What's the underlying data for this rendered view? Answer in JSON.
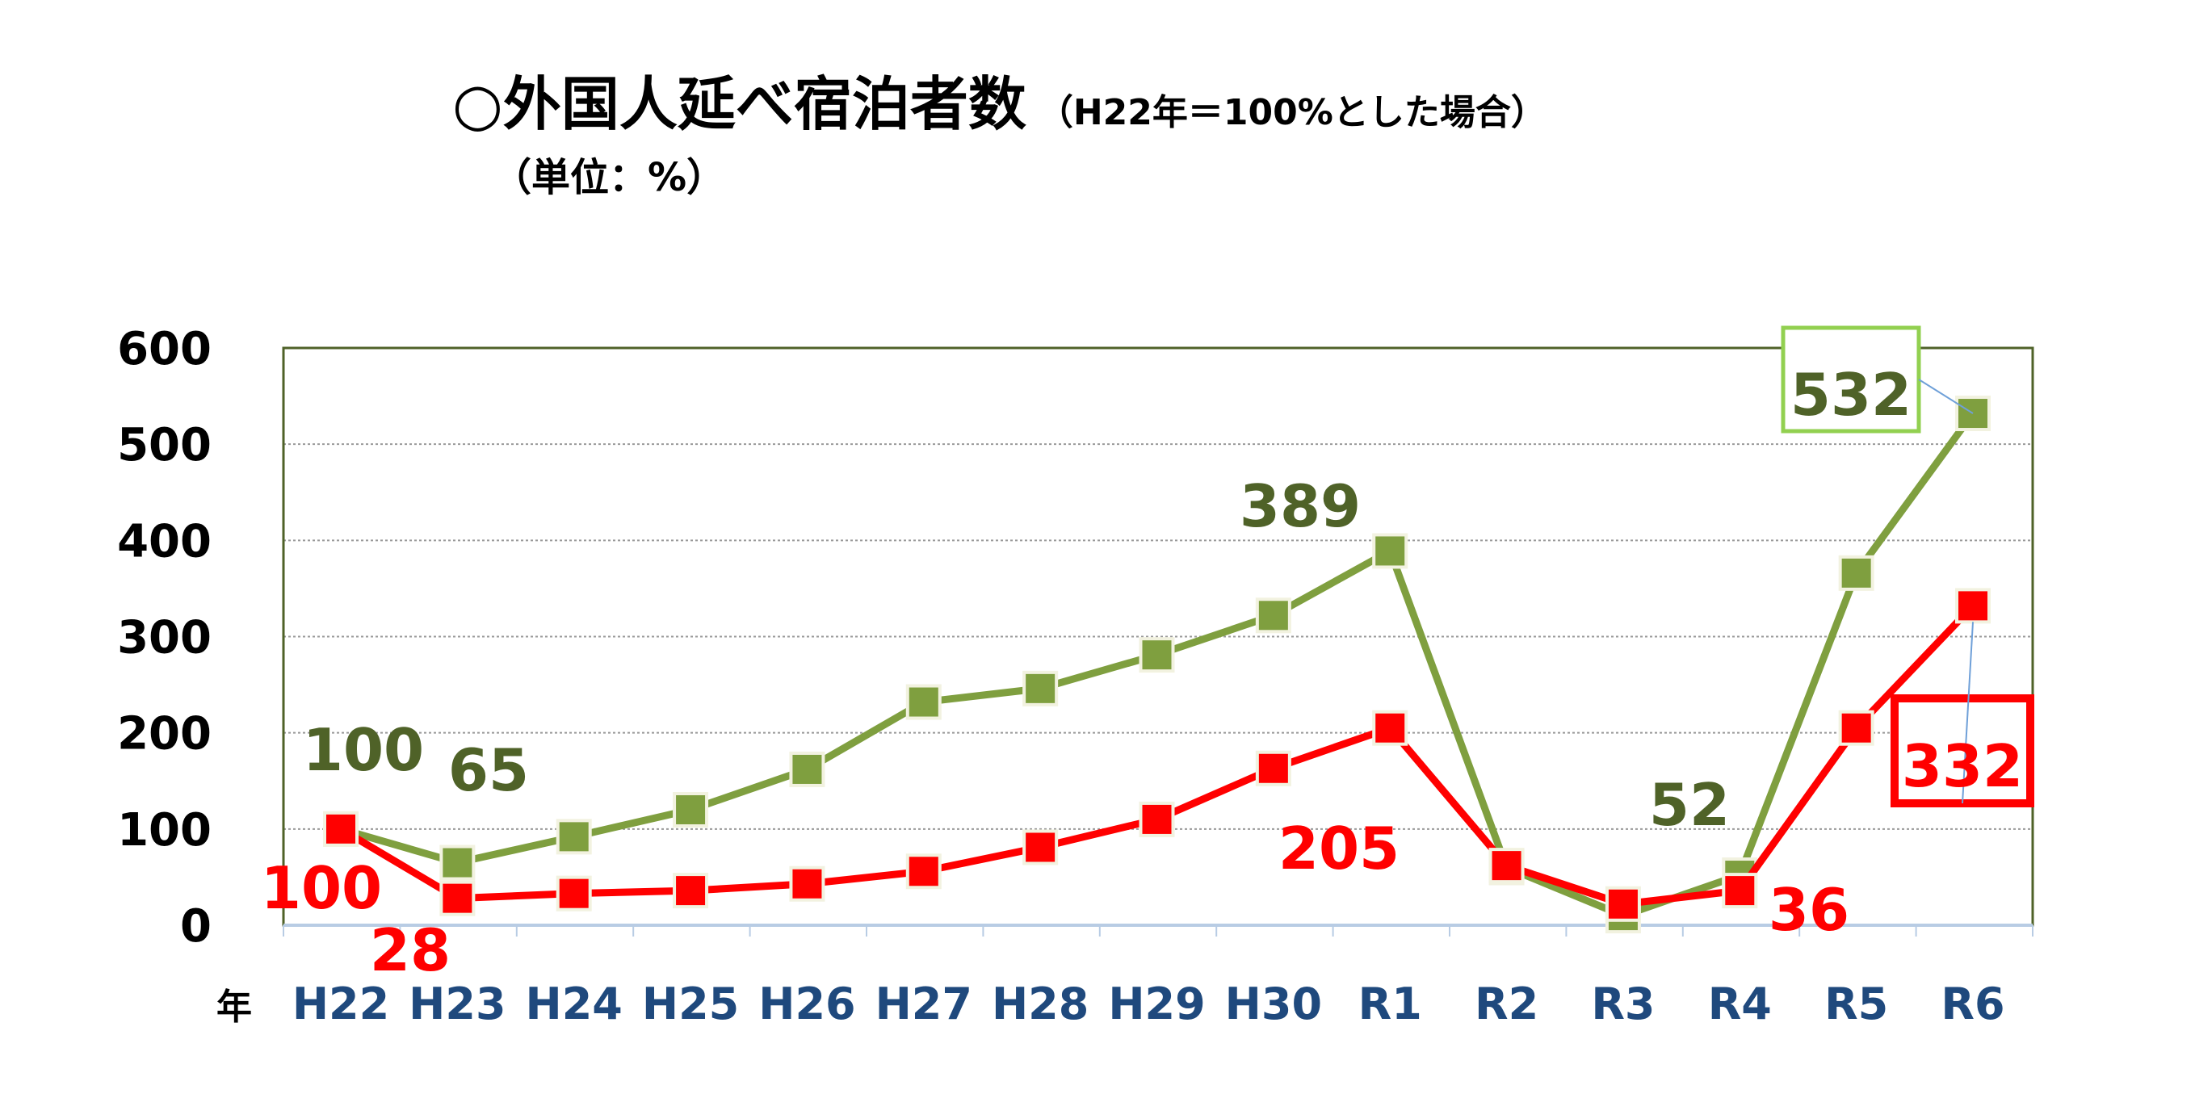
{
  "chart_data": {
    "type": "line",
    "title": "○外国人延べ宿泊者数",
    "subtitle": "（H22年＝100%とした場合）",
    "unit": "（単位：%）",
    "xlabel": "年",
    "ylabel": "",
    "ylim": [
      0,
      600
    ],
    "yticks": [
      0,
      100,
      200,
      300,
      400,
      500,
      600
    ],
    "grid": true,
    "categories": [
      "H22",
      "H23",
      "H24",
      "H25",
      "H26",
      "H27",
      "H28",
      "H29",
      "H30",
      "R1",
      "R2",
      "R3",
      "R4",
      "R5",
      "R6"
    ],
    "series": [
      {
        "color": "#7f9f3f",
        "label_color": "#4f6228",
        "values": [
          100,
          65,
          92,
          120,
          162,
          232,
          246,
          281,
          322,
          389,
          60,
          10,
          52,
          366,
          532
        ]
      },
      {
        "color": "#ff0000",
        "label_color": "#ff0000",
        "values": [
          100,
          28,
          33,
          36,
          43,
          56,
          81,
          110,
          163,
          205,
          62,
          22,
          36,
          205,
          332
        ]
      }
    ],
    "data_labels": [
      {
        "series": 0,
        "index": 0,
        "text": "100"
      },
      {
        "series": 0,
        "index": 1,
        "text": "65"
      },
      {
        "series": 0,
        "index": 9,
        "text": "389"
      },
      {
        "series": 0,
        "index": 12,
        "text": "52"
      },
      {
        "series": 0,
        "index": 14,
        "text": "532",
        "boxed": true,
        "box_color": "#92d050"
      },
      {
        "series": 1,
        "index": 0,
        "text": "100"
      },
      {
        "series": 1,
        "index": 1,
        "text": "28"
      },
      {
        "series": 1,
        "index": 9,
        "text": "205"
      },
      {
        "series": 1,
        "index": 12,
        "text": "36"
      },
      {
        "series": 1,
        "index": 14,
        "text": "332",
        "boxed": true,
        "box_color": "#ff0000"
      }
    ]
  }
}
